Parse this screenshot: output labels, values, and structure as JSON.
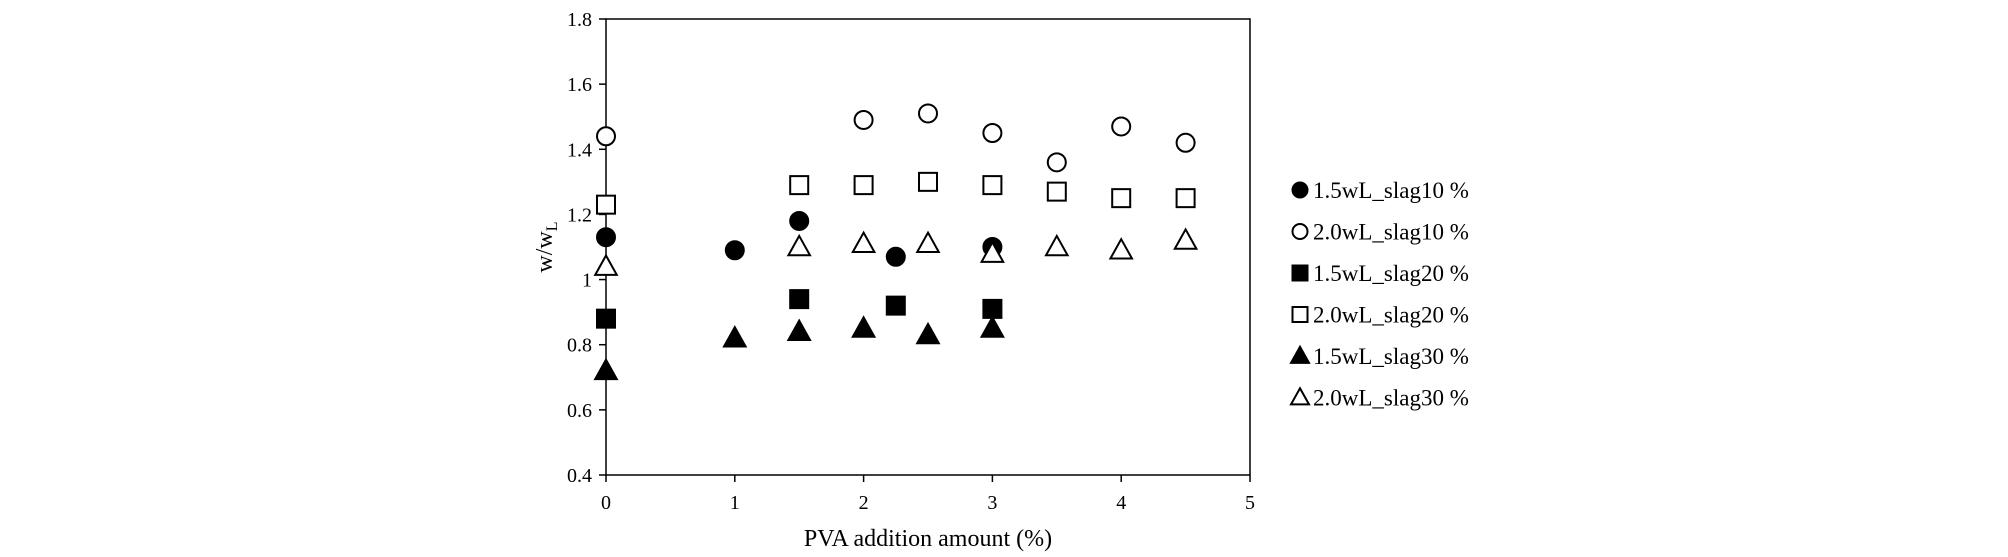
{
  "chart_data": {
    "type": "scatter",
    "title": "",
    "xlabel": "PVA addition amount (%)",
    "ylabel": {
      "main": "w/w",
      "sub": "L"
    },
    "xlim": [
      0,
      5
    ],
    "ylim": [
      0.4,
      1.8
    ],
    "xticks": [
      "0",
      "1",
      "2",
      "3",
      "4",
      "5"
    ],
    "yticks": [
      "0.4",
      "0.6",
      "0.8",
      "1",
      "1.2",
      "1.4",
      "1.6",
      "1.8"
    ],
    "grid": false,
    "legend_position": "right",
    "series": [
      {
        "name": "1.5wL_slag10 %",
        "marker": "circle",
        "filled": true,
        "points": [
          [
            0,
            1.13
          ],
          [
            1,
            1.09
          ],
          [
            1.5,
            1.18
          ],
          [
            2.25,
            1.07
          ],
          [
            3,
            1.1
          ]
        ]
      },
      {
        "name": "2.0wL_slag10 %",
        "marker": "circle",
        "filled": false,
        "points": [
          [
            0,
            1.44
          ],
          [
            2,
            1.49
          ],
          [
            2.5,
            1.51
          ],
          [
            3,
            1.45
          ],
          [
            3.5,
            1.36
          ],
          [
            4,
            1.47
          ],
          [
            4.5,
            1.42
          ]
        ]
      },
      {
        "name": "1.5wL_slag20 %",
        "marker": "square",
        "filled": true,
        "points": [
          [
            0,
            0.88
          ],
          [
            1.5,
            0.94
          ],
          [
            2.25,
            0.92
          ],
          [
            3,
            0.91
          ]
        ]
      },
      {
        "name": "2.0wL_slag20 %",
        "marker": "square",
        "filled": false,
        "points": [
          [
            0,
            1.23
          ],
          [
            1.5,
            1.29
          ],
          [
            2,
            1.29
          ],
          [
            2.5,
            1.3
          ],
          [
            3,
            1.29
          ],
          [
            3.5,
            1.27
          ],
          [
            4,
            1.25
          ],
          [
            4.5,
            1.25
          ]
        ]
      },
      {
        "name": "1.5wL_slag30 %",
        "marker": "triangle",
        "filled": true,
        "points": [
          [
            0,
            0.72
          ],
          [
            1,
            0.82
          ],
          [
            1.5,
            0.84
          ],
          [
            2,
            0.85
          ],
          [
            2.5,
            0.83
          ],
          [
            3,
            0.85
          ]
        ]
      },
      {
        "name": "2.0wL_slag30 %",
        "marker": "triangle",
        "filled": false,
        "points": [
          [
            0,
            1.04
          ],
          [
            1.5,
            1.1
          ],
          [
            2,
            1.11
          ],
          [
            2.5,
            1.11
          ],
          [
            3,
            1.08
          ],
          [
            3.5,
            1.1
          ],
          [
            4,
            1.09
          ],
          [
            4.5,
            1.12
          ]
        ]
      }
    ]
  }
}
